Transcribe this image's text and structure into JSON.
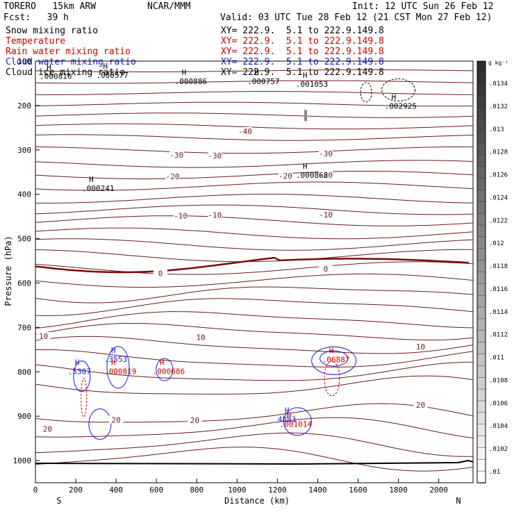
{
  "header": {
    "model": "TORERO   15km ARW",
    "center": "NCAR/MMM",
    "init": "Init: 12 UTC Sun 26 Feb 12",
    "fcst": "Fcst:   39 h",
    "valid": "Valid: 03 UTC Tue 28 Feb 12 (21 CST Mon 27 Feb 12)"
  },
  "legend": [
    {
      "name": "Snow mixing ratio",
      "xy": "XY= 222.9.  5.1 to 222.9.149.8",
      "color": "#000000"
    },
    {
      "name": "Temperature",
      "xy": "XY= 222.9.  5.1 to 222.9.149.8",
      "color": "#cc0000"
    },
    {
      "name": "Rain water mixing ratio",
      "xy": "XY= 222.9.  5.1 to 222.9.149.8",
      "color": "#cc0000"
    },
    {
      "name": "Cloud water mixing ratio",
      "xy": "XY= 222.9.  5.1 to 222.9.149.8",
      "color": "#1a1acc"
    },
    {
      "name": "Cloud ice mixing ratio",
      "xy": "XY= 222.9.  5.1 to 222.9.149.8",
      "color": "#000000"
    }
  ],
  "chart_data": {
    "type": "contour-cross-section",
    "xlabel": "Distance (km)",
    "ylabel": "Pressure (hPa)",
    "xlim": [
      0,
      2170
    ],
    "ylim": [
      1050,
      100
    ],
    "x_ticks": [
      0,
      200,
      400,
      600,
      800,
      1000,
      1200,
      1400,
      1600,
      1800,
      2000
    ],
    "y_ticks": [
      100,
      200,
      300,
      400,
      500,
      600,
      700,
      800,
      900,
      1000
    ],
    "left_end": "S",
    "right_end": "N",
    "colorbar": {
      "unit": "g kg⁻¹",
      "ticks": [
        ".0134",
        ".0132",
        ".013",
        ".0128",
        ".0126",
        ".0124",
        ".0122",
        ".012",
        ".0118",
        ".0116",
        ".0114",
        ".0112",
        ".011",
        ".0108",
        ".0106",
        ".0104",
        ".0102",
        ".01"
      ]
    },
    "temperature_contours": {
      "interval": 5,
      "labels": [
        {
          "value": "-40",
          "x": 1040,
          "p": 258
        },
        {
          "value": "-30",
          "x": 700,
          "p": 311
        },
        {
          "value": "-30",
          "x": 890,
          "p": 313
        },
        {
          "value": "-30",
          "x": 1440,
          "p": 308
        },
        {
          "value": "-20",
          "x": 680,
          "p": 360
        },
        {
          "value": "-20",
          "x": 1240,
          "p": 358
        },
        {
          "value": "-20",
          "x": 1440,
          "p": 357
        },
        {
          "value": "-10",
          "x": 720,
          "p": 448
        },
        {
          "value": "-10",
          "x": 890,
          "p": 447
        },
        {
          "value": "-10",
          "x": 1440,
          "p": 446
        },
        {
          "value": "0",
          "x": 620,
          "p": 578
        },
        {
          "value": "0",
          "x": 1440,
          "p": 568
        },
        {
          "value": "10",
          "x": 40,
          "p": 720
        },
        {
          "value": "10",
          "x": 820,
          "p": 722
        },
        {
          "value": "10",
          "x": 1910,
          "p": 743
        },
        {
          "value": "20",
          "x": 400,
          "p": 908
        },
        {
          "value": "20",
          "x": 790,
          "p": 909
        },
        {
          "value": "20",
          "x": 1910,
          "p": 875
        },
        {
          "value": "20",
          "x": 60,
          "p": 929
        }
      ]
    },
    "maxima_labels": [
      {
        "label": ".000816",
        "x": 90,
        "p": 132,
        "color": "#000000"
      },
      {
        "label": ".000577",
        "x": 370,
        "p": 130,
        "color": "#000000"
      },
      {
        "label": ".000886",
        "x": 760,
        "p": 144,
        "color": "#000000"
      },
      {
        "label": ".000757",
        "x": 1120,
        "p": 144,
        "color": "#000000"
      },
      {
        "label": ".001053",
        "x": 1360,
        "p": 150,
        "color": "#000000"
      },
      {
        "label": ".002925",
        "x": 1800,
        "p": 199,
        "color": "#000000"
      },
      {
        "label": ".000241",
        "x": 300,
        "p": 385,
        "color": "#000000"
      },
      {
        "label": ".000868",
        "x": 1360,
        "p": 355,
        "color": "#000000"
      },
      {
        "label": ".3553",
        "x": 410,
        "p": 770,
        "color": "#1a1acc"
      },
      {
        "label": ".5307",
        "x": 230,
        "p": 797,
        "color": "#1a1acc"
      },
      {
        "label": ".000819",
        "x": 410,
        "p": 797,
        "color": "#cc0000"
      },
      {
        "label": ".000686",
        "x": 650,
        "p": 797,
        "color": "#cc0000"
      },
      {
        "label": ".06887",
        "x": 1490,
        "p": 771,
        "color": "#cc0000"
      },
      {
        "label": "4883",
        "x": 1270,
        "p": 905,
        "color": "#1a1acc"
      },
      {
        "label": ".001014",
        "x": 1280,
        "p": 916,
        "color": "#cc0000"
      }
    ]
  }
}
